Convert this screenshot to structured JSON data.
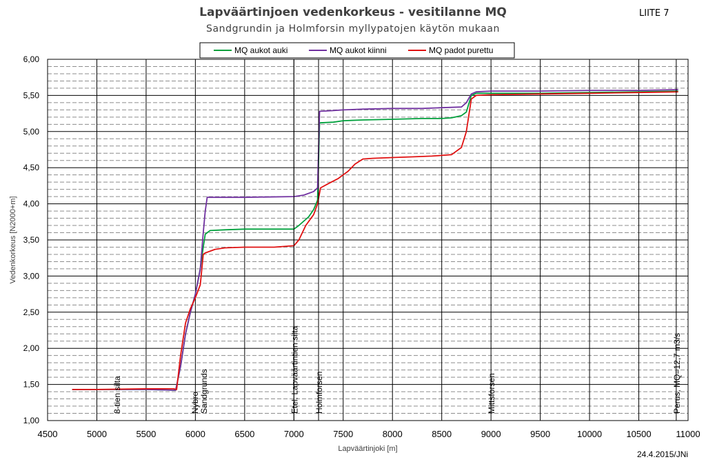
{
  "appendix_label": "LIITE 7",
  "date_label": "24.4.2015/JNi",
  "chart_data": {
    "type": "line",
    "title": "Lapväärtinjoen vedenkorkeus - vesitilanne MQ",
    "subtitle": "Sandgrundin ja Holmforsin myllypatojen käytön mukaan",
    "xlabel": "Lapväärtinjoki [m]",
    "ylabel": "Vedenkorkeus [N2000+m]",
    "xlim": [
      4500,
      11000
    ],
    "ylim": [
      1.0,
      6.0
    ],
    "x_ticks": [
      4500,
      5000,
      5500,
      6000,
      6500,
      7000,
      7500,
      8000,
      8500,
      9000,
      9500,
      10000,
      10500,
      11000
    ],
    "y_ticks": [
      1.0,
      1.5,
      2.0,
      2.5,
      3.0,
      3.5,
      4.0,
      4.5,
      5.0,
      5.5,
      6.0
    ],
    "y_tick_labels": [
      "1,00",
      "1,50",
      "2,00",
      "2,50",
      "3,00",
      "3,50",
      "4,00",
      "4,50",
      "5,00",
      "5,50",
      "6,00"
    ],
    "grid": true,
    "legend_position": "top-center",
    "series": [
      {
        "name": "MQ aukot auki",
        "color": "#00a03c",
        "points": [
          [
            4750,
            1.43
          ],
          [
            5000,
            1.43
          ],
          [
            5500,
            1.43
          ],
          [
            5800,
            1.42
          ],
          [
            5850,
            1.75
          ],
          [
            5900,
            2.2
          ],
          [
            5950,
            2.5
          ],
          [
            6000,
            2.75
          ],
          [
            6050,
            3.1
          ],
          [
            6080,
            3.4
          ],
          [
            6100,
            3.58
          ],
          [
            6150,
            3.63
          ],
          [
            6300,
            3.64
          ],
          [
            6500,
            3.65
          ],
          [
            7000,
            3.65
          ],
          [
            7050,
            3.7
          ],
          [
            7150,
            3.82
          ],
          [
            7200,
            3.92
          ],
          [
            7240,
            4.05
          ],
          [
            7260,
            5.12
          ],
          [
            7400,
            5.13
          ],
          [
            7500,
            5.15
          ],
          [
            7700,
            5.16
          ],
          [
            8000,
            5.17
          ],
          [
            8300,
            5.18
          ],
          [
            8500,
            5.18
          ],
          [
            8600,
            5.19
          ],
          [
            8700,
            5.22
          ],
          [
            8750,
            5.27
          ],
          [
            8800,
            5.5
          ],
          [
            8850,
            5.53
          ],
          [
            9000,
            5.53
          ],
          [
            9500,
            5.53
          ],
          [
            10000,
            5.54
          ],
          [
            10500,
            5.55
          ],
          [
            10900,
            5.56
          ]
        ]
      },
      {
        "name": "MQ aukot kiinni",
        "color": "#7030a0",
        "points": [
          [
            4750,
            1.43
          ],
          [
            5000,
            1.43
          ],
          [
            5500,
            1.43
          ],
          [
            5800,
            1.42
          ],
          [
            5850,
            1.75
          ],
          [
            5900,
            2.2
          ],
          [
            5950,
            2.5
          ],
          [
            6000,
            2.75
          ],
          [
            6050,
            3.1
          ],
          [
            6080,
            3.6
          ],
          [
            6100,
            3.9
          ],
          [
            6120,
            4.09
          ],
          [
            6200,
            4.09
          ],
          [
            6500,
            4.09
          ],
          [
            7000,
            4.1
          ],
          [
            7100,
            4.12
          ],
          [
            7200,
            4.17
          ],
          [
            7240,
            4.22
          ],
          [
            7260,
            5.28
          ],
          [
            7400,
            5.29
          ],
          [
            7500,
            5.3
          ],
          [
            7700,
            5.31
          ],
          [
            8000,
            5.32
          ],
          [
            8300,
            5.32
          ],
          [
            8500,
            5.33
          ],
          [
            8700,
            5.34
          ],
          [
            8750,
            5.4
          ],
          [
            8800,
            5.52
          ],
          [
            8850,
            5.55
          ],
          [
            9000,
            5.56
          ],
          [
            9500,
            5.56
          ],
          [
            10000,
            5.57
          ],
          [
            10500,
            5.57
          ],
          [
            10900,
            5.58
          ]
        ]
      },
      {
        "name": "MQ padot purettu",
        "color": "#e01010",
        "points": [
          [
            4750,
            1.43
          ],
          [
            5000,
            1.43
          ],
          [
            5500,
            1.44
          ],
          [
            5780,
            1.44
          ],
          [
            5810,
            1.43
          ],
          [
            5850,
            1.9
          ],
          [
            5900,
            2.35
          ],
          [
            5950,
            2.55
          ],
          [
            6000,
            2.7
          ],
          [
            6050,
            2.88
          ],
          [
            6080,
            3.3
          ],
          [
            6100,
            3.32
          ],
          [
            6200,
            3.37
          ],
          [
            6300,
            3.39
          ],
          [
            6500,
            3.4
          ],
          [
            6800,
            3.4
          ],
          [
            7000,
            3.42
          ],
          [
            7050,
            3.5
          ],
          [
            7120,
            3.7
          ],
          [
            7200,
            3.85
          ],
          [
            7240,
            4.0
          ],
          [
            7270,
            4.22
          ],
          [
            7350,
            4.28
          ],
          [
            7450,
            4.35
          ],
          [
            7550,
            4.45
          ],
          [
            7620,
            4.55
          ],
          [
            7700,
            4.62
          ],
          [
            7800,
            4.63
          ],
          [
            8000,
            4.64
          ],
          [
            8200,
            4.65
          ],
          [
            8400,
            4.66
          ],
          [
            8500,
            4.67
          ],
          [
            8600,
            4.68
          ],
          [
            8700,
            4.78
          ],
          [
            8750,
            5.0
          ],
          [
            8800,
            5.45
          ],
          [
            8850,
            5.5
          ],
          [
            9000,
            5.51
          ],
          [
            9500,
            5.52
          ],
          [
            10000,
            5.53
          ],
          [
            10500,
            5.54
          ],
          [
            10900,
            5.55
          ]
        ]
      }
    ],
    "annotations": [
      {
        "x": 5200,
        "label": "8-tien silta",
        "line": false
      },
      {
        "x": 5990,
        "label": "Nybro",
        "line": false
      },
      {
        "x": 6080,
        "label": "Sandgrunds",
        "line": false
      },
      {
        "x": 7000,
        "label": "Etel. Lapväärtintien silta",
        "line": true
      },
      {
        "x": 7250,
        "label": "Holmforsen",
        "line": true
      },
      {
        "x": 9000,
        "label": "Mittsforsen",
        "line": false
      },
      {
        "x": 10880,
        "label": "Perus, MQ=12,7 m3/s",
        "line": true
      }
    ]
  }
}
